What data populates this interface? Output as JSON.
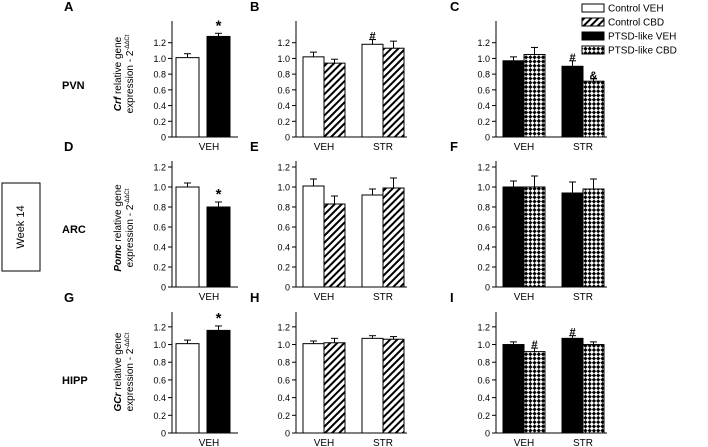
{
  "figure": {
    "side_label": "Week 14",
    "region_labels": [
      "PVN",
      "ARC",
      "HIPP"
    ],
    "ylabels": [
      {
        "gene": "Crf",
        "rest": " relative gene",
        "line2": "expression - 2",
        "sup": "-ΔΔCt"
      },
      {
        "gene": "Pomc",
        "rest": " relative gene",
        "line2": "expression - 2",
        "sup": "-ΔΔCt"
      },
      {
        "gene": "GCr",
        "rest": " relative gene",
        "line2": "expression - 2",
        "sup": "-ΔΔCt"
      }
    ],
    "legend": [
      {
        "label": "Control VEH",
        "pattern": "white"
      },
      {
        "label": "Control CBD",
        "pattern": "hatch"
      },
      {
        "label": "PTSD-like VEH",
        "pattern": "black"
      },
      {
        "label": "PTSD-like CBD",
        "pattern": "check"
      }
    ],
    "colors": {
      "ink": "#000000",
      "background": "#ffffff"
    }
  },
  "chart_data": [
    {
      "panel": "A",
      "region": "PVN",
      "type": "bar",
      "ylim": [
        0,
        1.4
      ],
      "ticks": [
        0,
        0.2,
        0.4,
        0.6,
        0.8,
        1.0,
        1.2
      ],
      "groups": [
        "VEH"
      ],
      "bars": [
        {
          "group": 0,
          "series": "Control VEH",
          "pattern": "white",
          "value": 1.01,
          "err": 0.05,
          "mark": ""
        },
        {
          "group": 0,
          "series": "PTSD-like VEH",
          "pattern": "black",
          "value": 1.28,
          "err": 0.04,
          "mark": "*"
        }
      ]
    },
    {
      "panel": "B",
      "region": "PVN",
      "type": "bar",
      "ylim": [
        0,
        1.4
      ],
      "ticks": [
        0,
        0.2,
        0.4,
        0.6,
        0.8,
        1.0,
        1.2
      ],
      "groups": [
        "VEH",
        "STR"
      ],
      "bars": [
        {
          "group": 0,
          "series": "Control VEH",
          "pattern": "white",
          "value": 1.02,
          "err": 0.06,
          "mark": ""
        },
        {
          "group": 0,
          "series": "Control CBD",
          "pattern": "hatch",
          "value": 0.94,
          "err": 0.05,
          "mark": ""
        },
        {
          "group": 1,
          "series": "Control VEH",
          "pattern": "white",
          "value": 1.18,
          "err": 0.06,
          "mark": "#"
        },
        {
          "group": 1,
          "series": "Control CBD",
          "pattern": "hatch",
          "value": 1.13,
          "err": 0.09,
          "mark": ""
        }
      ]
    },
    {
      "panel": "C",
      "region": "PVN",
      "type": "bar",
      "ylim": [
        0,
        1.4
      ],
      "ticks": [
        0,
        0.2,
        0.4,
        0.6,
        0.8,
        1.0,
        1.2
      ],
      "groups": [
        "VEH",
        "STR"
      ],
      "bars": [
        {
          "group": 0,
          "series": "PTSD-like VEH",
          "pattern": "black",
          "value": 0.97,
          "err": 0.05,
          "mark": ""
        },
        {
          "group": 0,
          "series": "PTSD-like CBD",
          "pattern": "check",
          "value": 1.05,
          "err": 0.09,
          "mark": ""
        },
        {
          "group": 1,
          "series": "PTSD-like VEH",
          "pattern": "black",
          "value": 0.9,
          "err": 0.07,
          "mark": "#"
        },
        {
          "group": 1,
          "series": "PTSD-like CBD",
          "pattern": "check",
          "value": 0.71,
          "err": 0.03,
          "mark": "&"
        }
      ]
    },
    {
      "panel": "D",
      "region": "ARC",
      "type": "bar",
      "ylim": [
        0,
        1.2
      ],
      "ticks": [
        0,
        0.2,
        0.4,
        0.6,
        0.8,
        1.0,
        1.2
      ],
      "groups": [
        "VEH"
      ],
      "bars": [
        {
          "group": 0,
          "series": "Control VEH",
          "pattern": "white",
          "value": 1.0,
          "err": 0.04,
          "mark": ""
        },
        {
          "group": 0,
          "series": "PTSD-like VEH",
          "pattern": "black",
          "value": 0.8,
          "err": 0.05,
          "mark": "*"
        }
      ]
    },
    {
      "panel": "E",
      "region": "ARC",
      "type": "bar",
      "ylim": [
        0,
        1.2
      ],
      "ticks": [
        0,
        0.2,
        0.4,
        0.6,
        0.8,
        1.0,
        1.2
      ],
      "groups": [
        "VEH",
        "STR"
      ],
      "bars": [
        {
          "group": 0,
          "series": "Control VEH",
          "pattern": "white",
          "value": 1.01,
          "err": 0.07,
          "mark": ""
        },
        {
          "group": 0,
          "series": "Control CBD",
          "pattern": "hatch",
          "value": 0.83,
          "err": 0.08,
          "mark": ""
        },
        {
          "group": 1,
          "series": "Control VEH",
          "pattern": "white",
          "value": 0.92,
          "err": 0.06,
          "mark": ""
        },
        {
          "group": 1,
          "series": "Control CBD",
          "pattern": "hatch",
          "value": 0.99,
          "err": 0.1,
          "mark": ""
        }
      ]
    },
    {
      "panel": "F",
      "region": "ARC",
      "type": "bar",
      "ylim": [
        0,
        1.2
      ],
      "ticks": [
        0,
        0.2,
        0.4,
        0.6,
        0.8,
        1.0,
        1.2
      ],
      "groups": [
        "VEH",
        "STR"
      ],
      "bars": [
        {
          "group": 0,
          "series": "PTSD-like VEH",
          "pattern": "black",
          "value": 1.0,
          "err": 0.06,
          "mark": ""
        },
        {
          "group": 0,
          "series": "PTSD-like CBD",
          "pattern": "check",
          "value": 1.0,
          "err": 0.11,
          "mark": ""
        },
        {
          "group": 1,
          "series": "PTSD-like VEH",
          "pattern": "black",
          "value": 0.94,
          "err": 0.11,
          "mark": ""
        },
        {
          "group": 1,
          "series": "PTSD-like CBD",
          "pattern": "check",
          "value": 0.98,
          "err": 0.1,
          "mark": ""
        }
      ]
    },
    {
      "panel": "G",
      "region": "HIPP",
      "type": "bar",
      "ylim": [
        0,
        1.3
      ],
      "ticks": [
        0,
        0.2,
        0.4,
        0.6,
        0.8,
        1.0,
        1.2
      ],
      "groups": [
        "VEH"
      ],
      "bars": [
        {
          "group": 0,
          "series": "Control VEH",
          "pattern": "white",
          "value": 1.01,
          "err": 0.04,
          "mark": ""
        },
        {
          "group": 0,
          "series": "PTSD-like VEH",
          "pattern": "black",
          "value": 1.16,
          "err": 0.05,
          "mark": "*"
        }
      ]
    },
    {
      "panel": "H",
      "region": "HIPP",
      "type": "bar",
      "ylim": [
        0,
        1.3
      ],
      "ticks": [
        0,
        0.2,
        0.4,
        0.6,
        0.8,
        1.0,
        1.2
      ],
      "groups": [
        "VEH",
        "STR"
      ],
      "bars": [
        {
          "group": 0,
          "series": "Control VEH",
          "pattern": "white",
          "value": 1.01,
          "err": 0.03,
          "mark": ""
        },
        {
          "group": 0,
          "series": "Control CBD",
          "pattern": "hatch",
          "value": 1.02,
          "err": 0.05,
          "mark": ""
        },
        {
          "group": 1,
          "series": "Control VEH",
          "pattern": "white",
          "value": 1.07,
          "err": 0.03,
          "mark": ""
        },
        {
          "group": 1,
          "series": "Control CBD",
          "pattern": "hatch",
          "value": 1.06,
          "err": 0.03,
          "mark": ""
        }
      ]
    },
    {
      "panel": "I",
      "region": "HIPP",
      "type": "bar",
      "ylim": [
        0,
        1.3
      ],
      "ticks": [
        0,
        0.2,
        0.4,
        0.6,
        0.8,
        1.0,
        1.2
      ],
      "groups": [
        "VEH",
        "STR"
      ],
      "bars": [
        {
          "group": 0,
          "series": "PTSD-like VEH",
          "pattern": "black",
          "value": 1.0,
          "err": 0.03,
          "mark": ""
        },
        {
          "group": 0,
          "series": "PTSD-like CBD",
          "pattern": "check",
          "value": 0.92,
          "err": 0.04,
          "mark": "#"
        },
        {
          "group": 1,
          "series": "PTSD-like VEH",
          "pattern": "black",
          "value": 1.07,
          "err": 0.03,
          "mark": "#"
        },
        {
          "group": 1,
          "series": "PTSD-like CBD",
          "pattern": "check",
          "value": 1.0,
          "err": 0.03,
          "mark": ""
        }
      ]
    }
  ]
}
